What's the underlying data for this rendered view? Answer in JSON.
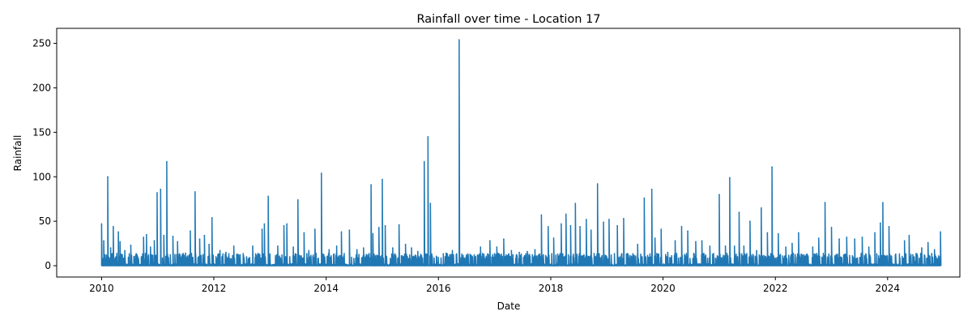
{
  "chart_data": {
    "type": "line",
    "title": "Rainfall over time - Location 17",
    "xlabel": "Date",
    "ylabel": "Rainfall",
    "xlim": [
      "2009-03-15",
      "2025-04-15"
    ],
    "ylim": [
      -12.7,
      266.9
    ],
    "xticks": [
      "2010-01-01",
      "2012-01-01",
      "2014-01-01",
      "2016-01-01",
      "2018-01-01",
      "2020-01-01",
      "2022-01-01",
      "2024-01-01"
    ],
    "xtick_labels": [
      "2010",
      "2012",
      "2014",
      "2016",
      "2018",
      "2020",
      "2022",
      "2024"
    ],
    "yticks": [
      0,
      50,
      100,
      150,
      200,
      250
    ],
    "ytick_labels": [
      "0",
      "50",
      "100",
      "150",
      "200",
      "250"
    ],
    "grid": false,
    "line_color": "#1f77b4",
    "series": [
      {
        "points": [
          [
            "2010-01-01",
            47
          ],
          [
            "2010-01-08",
            8
          ],
          [
            "2010-01-15",
            28
          ],
          [
            "2010-01-22",
            2
          ],
          [
            "2010-02-01",
            12
          ],
          [
            "2010-02-10",
            100
          ],
          [
            "2010-02-18",
            5
          ],
          [
            "2010-03-01",
            20
          ],
          [
            "2010-03-18",
            44
          ],
          [
            "2010-04-05",
            10
          ],
          [
            "2010-04-20",
            38
          ],
          [
            "2010-05-01",
            27
          ],
          [
            "2010-06-01",
            17
          ],
          [
            "2010-07-10",
            23
          ],
          [
            "2010-08-20",
            12
          ],
          [
            "2010-10-01",
            32
          ],
          [
            "2010-10-20",
            35
          ],
          [
            "2010-11-15",
            21
          ],
          [
            "2010-12-10",
            28
          ],
          [
            "2010-12-28",
            82
          ],
          [
            "2011-01-20",
            86
          ],
          [
            "2011-02-10",
            34
          ],
          [
            "2011-03-01",
            117
          ],
          [
            "2011-04-10",
            33
          ],
          [
            "2011-05-10",
            27
          ],
          [
            "2011-07-01",
            14
          ],
          [
            "2011-08-01",
            39
          ],
          [
            "2011-09-01",
            83
          ],
          [
            "2011-10-01",
            30
          ],
          [
            "2011-11-01",
            34
          ],
          [
            "2011-12-01",
            24
          ],
          [
            "2011-12-20",
            54
          ],
          [
            "2012-02-10",
            17
          ],
          [
            "2012-03-20",
            15
          ],
          [
            "2012-05-10",
            22
          ],
          [
            "2012-06-20",
            12
          ],
          [
            "2012-08-01",
            10
          ],
          [
            "2012-09-10",
            22
          ],
          [
            "2012-10-20",
            13
          ],
          [
            "2012-11-10",
            41
          ],
          [
            "2012-11-25",
            47
          ],
          [
            "2012-12-20",
            78
          ],
          [
            "2013-02-20",
            22
          ],
          [
            "2013-04-01",
            45
          ],
          [
            "2013-04-20",
            47
          ],
          [
            "2013-06-01",
            21
          ],
          [
            "2013-07-01",
            74
          ],
          [
            "2013-08-10",
            37
          ],
          [
            "2013-09-10",
            17
          ],
          [
            "2013-10-20",
            41
          ],
          [
            "2013-12-01",
            104
          ],
          [
            "2014-01-20",
            18
          ],
          [
            "2014-03-10",
            22
          ],
          [
            "2014-04-10",
            38
          ],
          [
            "2014-06-01",
            40
          ],
          [
            "2014-07-20",
            18
          ],
          [
            "2014-09-01",
            20
          ],
          [
            "2014-10-20",
            91
          ],
          [
            "2014-11-01",
            36
          ],
          [
            "2014-12-10",
            43
          ],
          [
            "2015-01-01",
            97
          ],
          [
            "2015-01-20",
            45
          ],
          [
            "2015-03-10",
            20
          ],
          [
            "2015-04-20",
            46
          ],
          [
            "2015-06-01",
            24
          ],
          [
            "2015-07-10",
            20
          ],
          [
            "2015-08-20",
            16
          ],
          [
            "2015-10-01",
            117
          ],
          [
            "2015-10-25",
            145
          ],
          [
            "2015-11-10",
            70
          ],
          [
            "2015-12-20",
            10
          ],
          [
            "2016-02-20",
            14
          ],
          [
            "2016-04-01",
            17
          ],
          [
            "2016-05-15",
            254
          ],
          [
            "2016-07-01",
            12
          ],
          [
            "2016-08-10",
            10
          ],
          [
            "2016-10-01",
            21
          ],
          [
            "2016-12-01",
            28
          ],
          [
            "2017-01-15",
            21
          ],
          [
            "2017-03-01",
            30
          ],
          [
            "2017-04-20",
            17
          ],
          [
            "2017-06-10",
            15
          ],
          [
            "2017-08-01",
            16
          ],
          [
            "2017-09-20",
            18
          ],
          [
            "2017-11-01",
            57
          ],
          [
            "2017-12-15",
            44
          ],
          [
            "2018-01-20",
            31
          ],
          [
            "2018-03-10",
            47
          ],
          [
            "2018-04-10",
            58
          ],
          [
            "2018-05-10",
            45
          ],
          [
            "2018-06-10",
            70
          ],
          [
            "2018-07-10",
            44
          ],
          [
            "2018-08-20",
            52
          ],
          [
            "2018-09-20",
            40
          ],
          [
            "2018-11-01",
            92
          ],
          [
            "2018-12-10",
            49
          ],
          [
            "2019-01-15",
            52
          ],
          [
            "2019-03-10",
            45
          ],
          [
            "2019-04-20",
            53
          ],
          [
            "2019-06-01",
            8
          ],
          [
            "2019-07-20",
            24
          ],
          [
            "2019-09-01",
            76
          ],
          [
            "2019-10-20",
            86
          ],
          [
            "2019-11-10",
            31
          ],
          [
            "2019-12-20",
            41
          ],
          [
            "2020-02-01",
            15
          ],
          [
            "2020-03-20",
            28
          ],
          [
            "2020-05-01",
            44
          ],
          [
            "2020-06-10",
            39
          ],
          [
            "2020-08-01",
            27
          ],
          [
            "2020-09-10",
            28
          ],
          [
            "2020-11-01",
            22
          ],
          [
            "2021-01-01",
            80
          ],
          [
            "2021-02-10",
            22
          ],
          [
            "2021-03-10",
            99
          ],
          [
            "2021-04-10",
            22
          ],
          [
            "2021-05-10",
            60
          ],
          [
            "2021-06-10",
            22
          ],
          [
            "2021-07-20",
            50
          ],
          [
            "2021-09-01",
            17
          ],
          [
            "2021-10-01",
            65
          ],
          [
            "2021-11-10",
            37
          ],
          [
            "2021-12-10",
            111
          ],
          [
            "2022-01-20",
            36
          ],
          [
            "2022-03-10",
            21
          ],
          [
            "2022-04-20",
            25
          ],
          [
            "2022-06-01",
            37
          ],
          [
            "2022-07-20",
            12
          ],
          [
            "2022-09-01",
            21
          ],
          [
            "2022-10-10",
            31
          ],
          [
            "2022-11-20",
            71
          ],
          [
            "2023-01-01",
            43
          ],
          [
            "2023-02-20",
            30
          ],
          [
            "2023-04-10",
            32
          ],
          [
            "2023-06-01",
            30
          ],
          [
            "2023-07-20",
            32
          ],
          [
            "2023-09-01",
            21
          ],
          [
            "2023-10-10",
            37
          ],
          [
            "2023-11-15",
            48
          ],
          [
            "2023-12-01",
            71
          ],
          [
            "2024-01-10",
            44
          ],
          [
            "2024-02-20",
            12
          ],
          [
            "2024-04-20",
            28
          ],
          [
            "2024-05-20",
            34
          ],
          [
            "2024-07-01",
            5
          ],
          [
            "2024-08-10",
            20
          ],
          [
            "2024-09-20",
            26
          ],
          [
            "2024-11-01",
            18
          ],
          [
            "2024-12-10",
            38
          ]
        ]
      }
    ]
  }
}
